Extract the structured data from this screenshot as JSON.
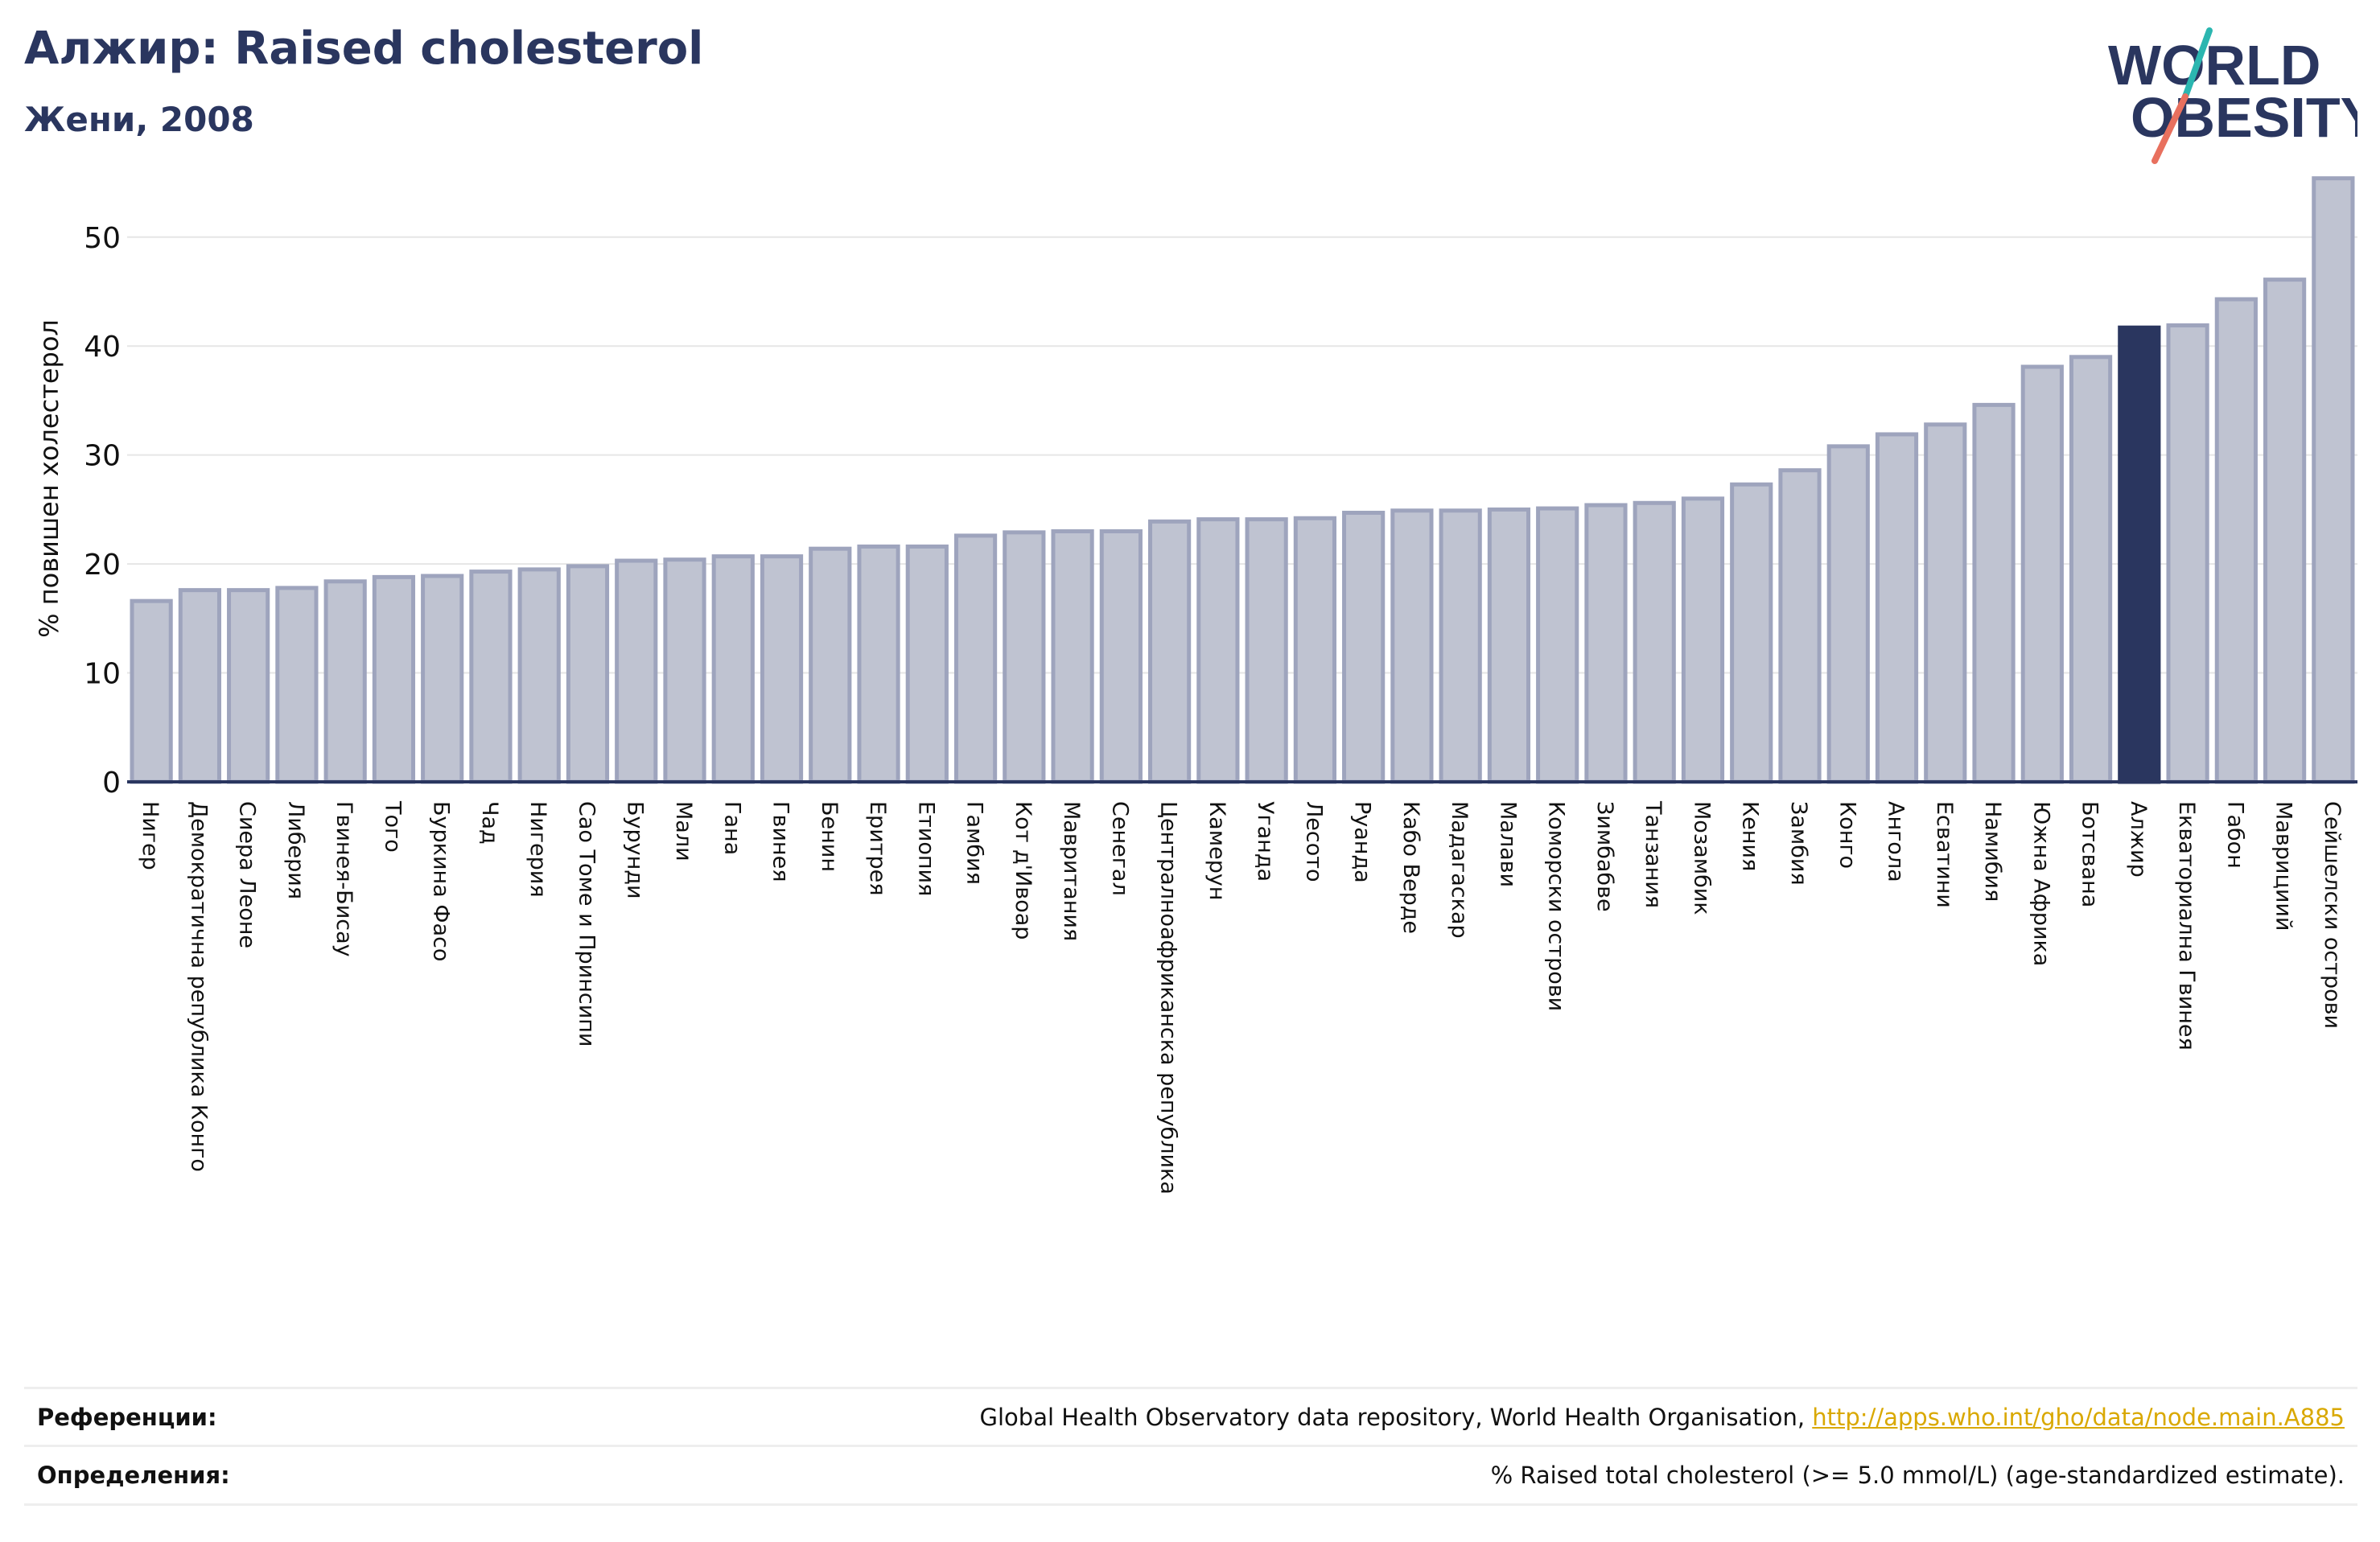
{
  "header": {
    "title": "Алжир: Raised cholesterol",
    "subtitle": "Жени, 2008"
  },
  "logo": {
    "line1": "WORLD",
    "line2": "OBESITY",
    "colors": {
      "text": "#2a365f",
      "slash_teal": "#2bb6b0",
      "slash_coral": "#e8705e"
    }
  },
  "chart_data": {
    "type": "bar",
    "title": "Алжир: Raised cholesterol",
    "subtitle": "Жени, 2008",
    "ylabel": "% повишен холестерол",
    "xlabel": "",
    "ylim": [
      0,
      57
    ],
    "yticks": [
      0,
      10,
      20,
      30,
      40,
      50
    ],
    "grid": true,
    "highlight": "Алжир",
    "colors": {
      "bar": "#bfc3d1",
      "bar_edge": "#9ea4bd",
      "highlight": "#2a365f",
      "axis": "#2a365f"
    },
    "categories": [
      "Нигер",
      "Демократична република Конго",
      "Сиера Леоне",
      "Либерия",
      "Гвинея-Бисау",
      "Того",
      "Буркина Фасо",
      "Чад",
      "Нигерия",
      "Сао Томе и Принсипи",
      "Бурунди",
      "Мали",
      "Гана",
      "Гвинея",
      "Бенин",
      "Еритрея",
      "Етиопия",
      "Гамбия",
      "Кот д'Ивоар",
      "Мавритания",
      "Сенегал",
      "Централноафриканска република",
      "Камерун",
      "Уганда",
      "Лесото",
      "Руанда",
      "Кабо Верде",
      "Мадагаскар",
      "Малави",
      "Коморски острови",
      "Зимбабве",
      "Танзания",
      "Мозамбик",
      "Кения",
      "Замбия",
      "Конго",
      "Ангола",
      "Есватини",
      "Намибия",
      "Южна Африка",
      "Ботсвана",
      "Алжир",
      "Екваториална Гвинея",
      "Габон",
      "Маврициий",
      "Сейшелски острови"
    ],
    "values": [
      16.6,
      17.6,
      17.6,
      17.8,
      18.4,
      18.8,
      18.9,
      19.3,
      19.5,
      19.8,
      20.3,
      20.4,
      20.7,
      20.7,
      21.4,
      21.6,
      21.6,
      22.6,
      22.9,
      23.0,
      23.0,
      23.9,
      24.1,
      24.1,
      24.2,
      24.7,
      24.9,
      24.9,
      25.0,
      25.1,
      25.4,
      25.6,
      26.0,
      27.3,
      28.6,
      30.8,
      31.9,
      32.8,
      34.6,
      38.1,
      39.0,
      41.7,
      41.9,
      44.3,
      46.1,
      55.4
    ]
  },
  "footer": {
    "references_label": "Референции:",
    "references_text": "Global Health Observatory data repository, World Health Organisation, ",
    "references_link": "http://apps.who.int/gho/data/node.main.A885",
    "definitions_label": "Определения:",
    "definitions_text": "% Raised total cholesterol (>= 5.0 mmol/L) (age-standardized estimate)."
  }
}
